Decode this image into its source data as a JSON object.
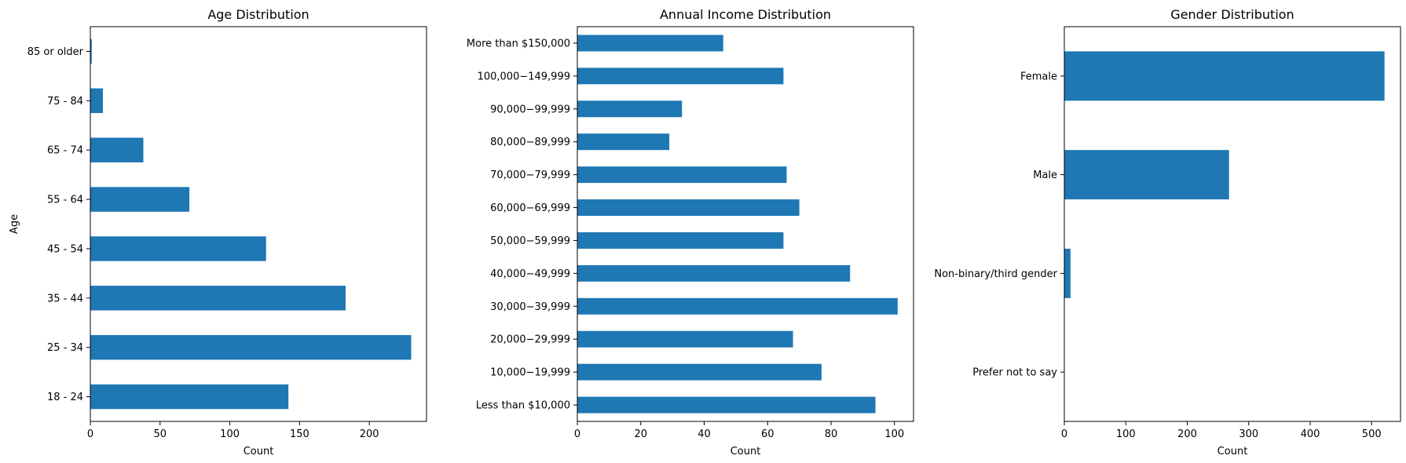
{
  "chart_data": [
    {
      "type": "bar",
      "orientation": "horizontal",
      "title": "Age Distribution",
      "xlabel": "Count",
      "ylabel": "Age",
      "categories": [
        "18 - 24",
        "25 - 34",
        "35 - 44",
        "45 - 54",
        "55 - 64",
        "65 - 74",
        "75 - 84",
        "85 or older"
      ],
      "values": [
        142,
        230,
        183,
        126,
        71,
        38,
        9,
        1
      ],
      "xlim": [
        0,
        241
      ],
      "xticks": [
        0,
        50,
        100,
        150,
        200
      ],
      "grid": false,
      "bar_color": "#1f77b4"
    },
    {
      "type": "bar",
      "orientation": "horizontal",
      "title": "Annual Income Distribution",
      "xlabel": "Count",
      "ylabel": "",
      "categories": [
        "Less than $10,000",
        "10,000−19,999",
        "20,000−29,999",
        "30,000−39,999",
        "40,000−49,999",
        "50,000−59,999",
        "60,000−69,999",
        "70,000−79,999",
        "80,000−89,999",
        "90,000−99,999",
        "100,000−149,999",
        "More than $150,000"
      ],
      "values": [
        94,
        77,
        68,
        101,
        86,
        65,
        70,
        66,
        29,
        33,
        65,
        46
      ],
      "xlim": [
        0,
        106
      ],
      "xticks": [
        0,
        20,
        40,
        60,
        80,
        100
      ],
      "grid": false,
      "bar_color": "#1f77b4"
    },
    {
      "type": "bar",
      "orientation": "horizontal",
      "title": "Gender Distribution",
      "xlabel": "Count",
      "ylabel": "",
      "categories": [
        "Prefer not to say",
        "Non-binary/third gender",
        "Male",
        "Female"
      ],
      "values": [
        0,
        10,
        268,
        521
      ],
      "xlim": [
        0,
        547
      ],
      "xticks": [
        0,
        100,
        200,
        300,
        400,
        500
      ],
      "grid": false,
      "bar_color": "#1f77b4"
    }
  ]
}
